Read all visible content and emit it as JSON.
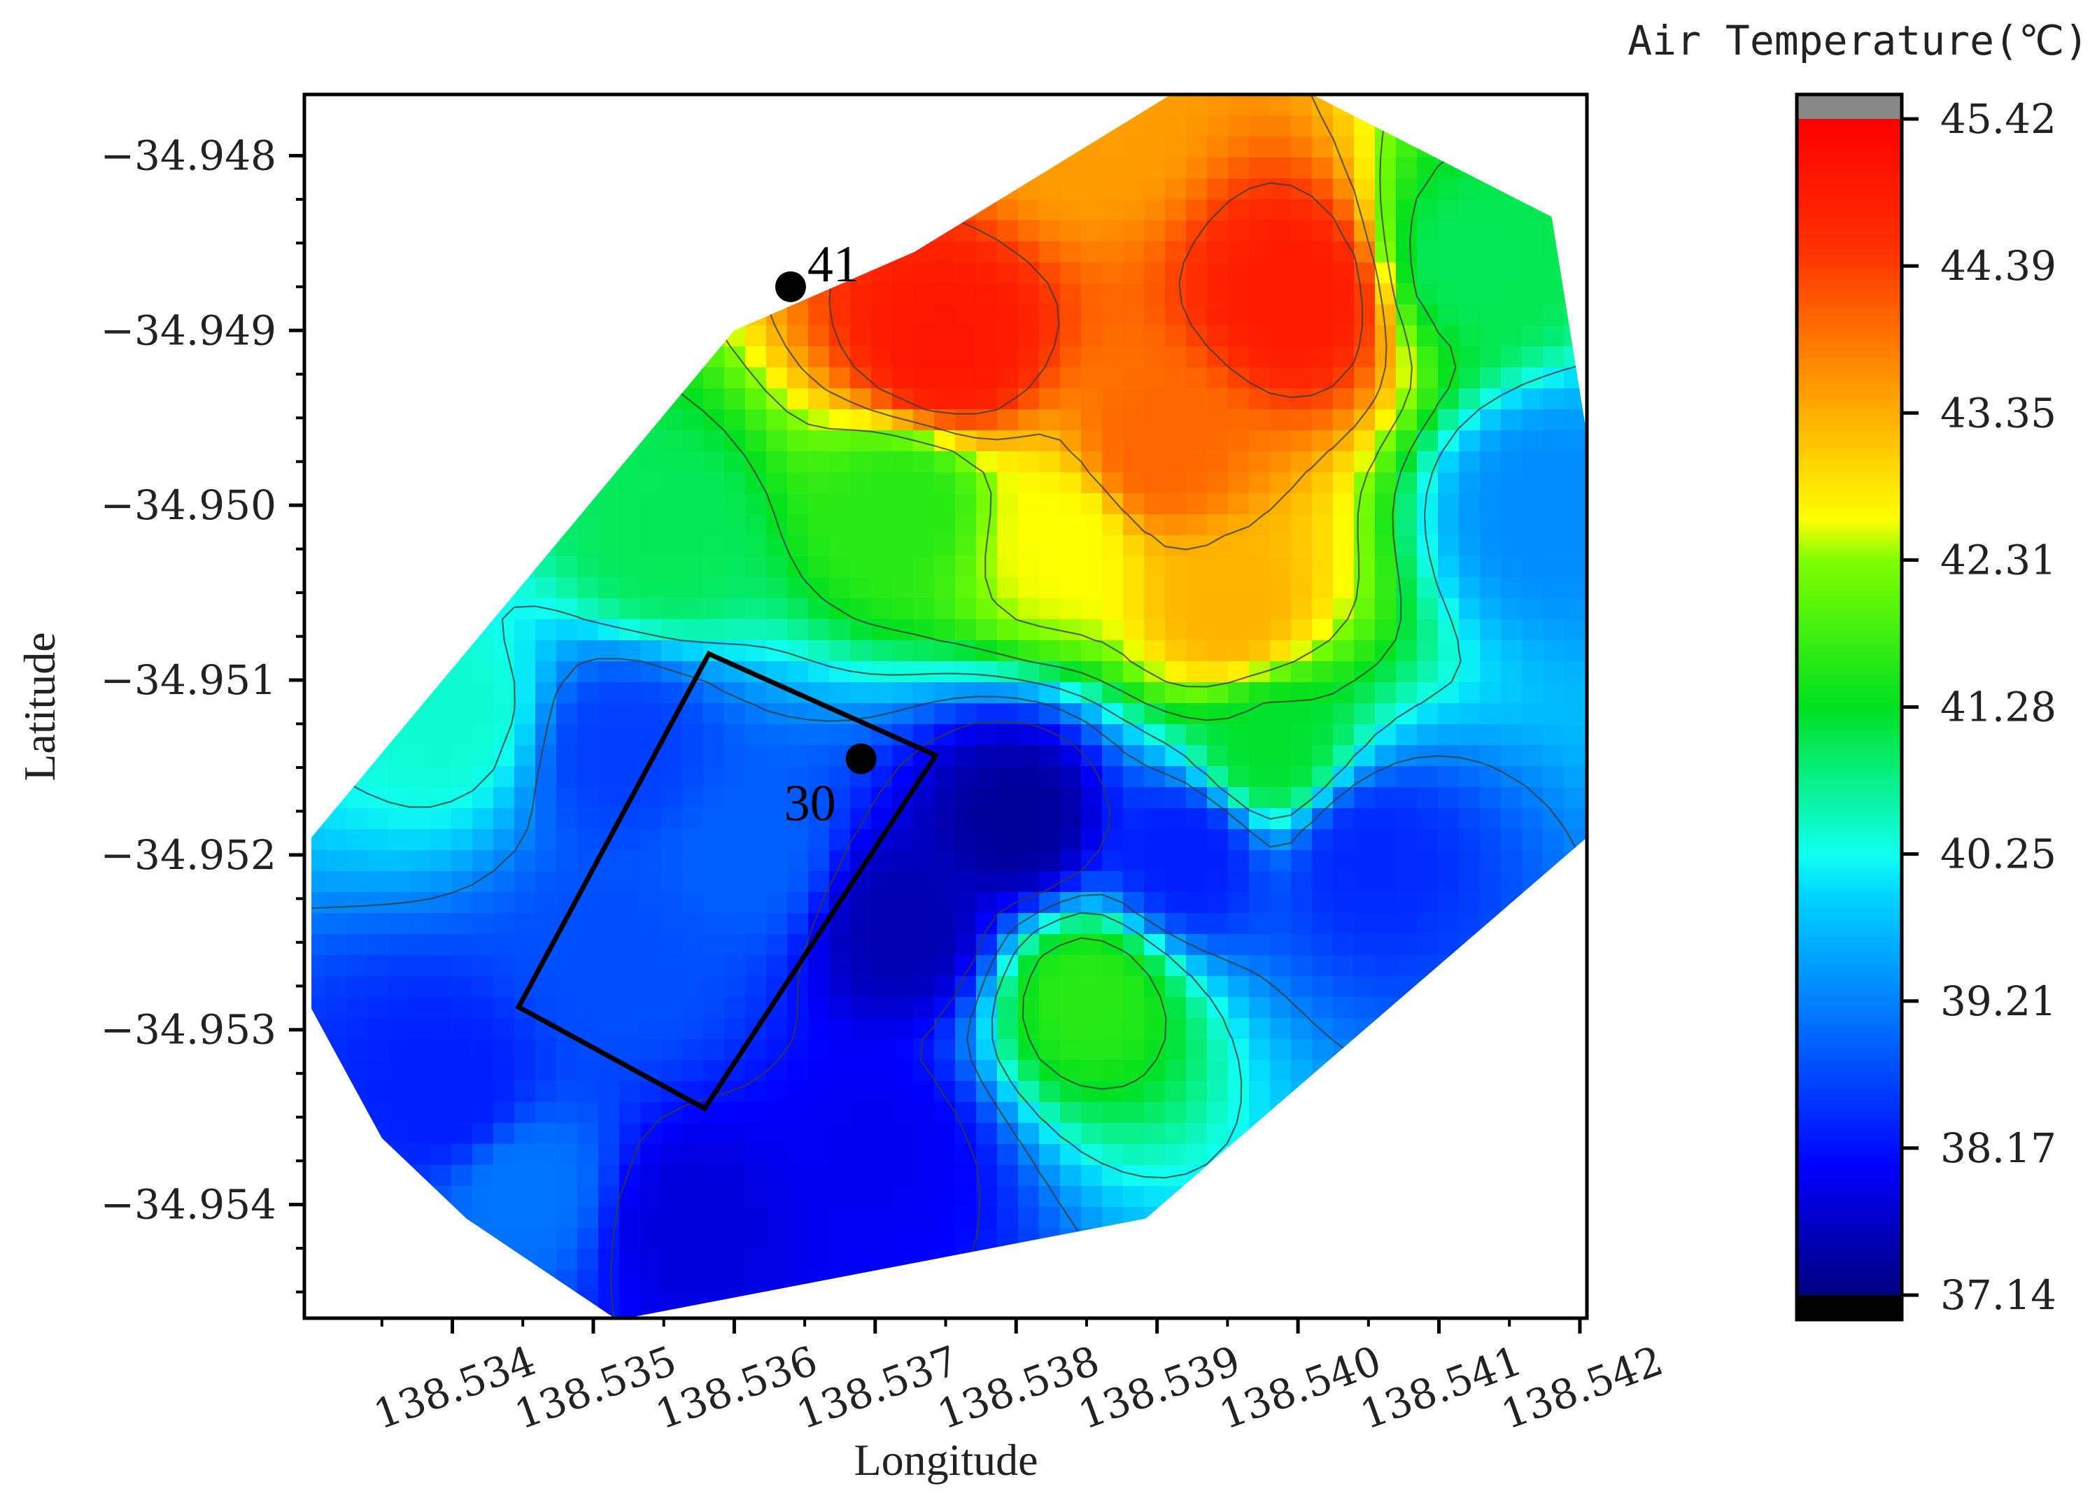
{
  "chart_data": {
    "type": "heatmap",
    "title": "",
    "xlabel": "Longitude",
    "ylabel": "Latitude",
    "xlim": [
      138.53295,
      138.54205
    ],
    "ylim": [
      -34.95465,
      -34.94765
    ],
    "x_ticks": [
      "138.534",
      "138.535",
      "138.536",
      "138.537",
      "138.538",
      "138.539",
      "138.540",
      "138.541",
      "138.542"
    ],
    "y_ticks": [
      "-34.948",
      "-34.949",
      "-34.950",
      "-34.951",
      "-34.952",
      "-34.953",
      "-34.954"
    ],
    "colorbar": {
      "title": "Air Temperature(℃)",
      "min": 37.14,
      "max": 45.42,
      "ticks": [
        "45.42",
        "44.39",
        "43.35",
        "42.31",
        "41.28",
        "40.25",
        "39.21",
        "38.17",
        "37.14"
      ],
      "colormap": "jet",
      "over_color": "#888888",
      "under_color": "#000000"
    },
    "stations": [
      {
        "id": "41",
        "lon": 138.5364,
        "lat": -34.94875
      },
      {
        "id": "30",
        "lon": 138.5369,
        "lat": -34.95145
      }
    ],
    "site_rectangle": [
      {
        "lon": 138.53582,
        "lat": -34.95085
      },
      {
        "lon": 138.53743,
        "lat": -34.95143
      },
      {
        "lon": 138.53579,
        "lat": -34.95345
      },
      {
        "lon": 138.53447,
        "lat": -34.95287
      }
    ],
    "hull": [
      {
        "lon": 138.533,
        "lat": -34.95288
      },
      {
        "lon": 138.5335,
        "lat": -34.95362
      },
      {
        "lon": 138.5341,
        "lat": -34.95408
      },
      {
        "lon": 138.53517,
        "lat": -34.95466
      },
      {
        "lon": 138.53892,
        "lat": -34.95408
      },
      {
        "lon": 138.54205,
        "lat": -34.9519
      },
      {
        "lon": 138.54205,
        "lat": -34.9496
      },
      {
        "lon": 138.5418,
        "lat": -34.94835
      },
      {
        "lon": 138.5401,
        "lat": -34.94765
      },
      {
        "lon": 138.5391,
        "lat": -34.94765
      },
      {
        "lon": 138.53728,
        "lat": -34.94855
      },
      {
        "lon": 138.536,
        "lat": -34.949
      },
      {
        "lon": 138.533,
        "lat": -34.9519
      }
    ],
    "field_points": [
      {
        "lon": 138.5375,
        "lat": -34.9491,
        "t": 45.0
      },
      {
        "lon": 138.54,
        "lat": -34.9488,
        "t": 44.9
      },
      {
        "lon": 138.539,
        "lat": -34.9497,
        "t": 44.0
      },
      {
        "lon": 138.5385,
        "lat": -34.9478,
        "t": 43.5
      },
      {
        "lon": 138.5395,
        "lat": -34.9506,
        "t": 43.3
      },
      {
        "lon": 138.5383,
        "lat": -34.9502,
        "t": 42.6
      },
      {
        "lon": 138.5372,
        "lat": -34.95,
        "t": 41.6
      },
      {
        "lon": 138.5355,
        "lat": -34.9502,
        "t": 41.0
      },
      {
        "lon": 138.534,
        "lat": -34.9512,
        "t": 40.4
      },
      {
        "lon": 138.5412,
        "lat": -34.9486,
        "t": 41.0
      },
      {
        "lon": 138.5418,
        "lat": -34.95,
        "t": 39.3
      },
      {
        "lon": 138.5398,
        "lat": -34.9514,
        "t": 41.2
      },
      {
        "lon": 138.5385,
        "lat": -34.9528,
        "t": 41.6
      },
      {
        "lon": 138.538,
        "lat": -34.9518,
        "t": 37.35
      },
      {
        "lon": 138.5372,
        "lat": -34.9524,
        "t": 37.5
      },
      {
        "lon": 138.5361,
        "lat": -34.952,
        "t": 38.9
      },
      {
        "lon": 138.5352,
        "lat": -34.9514,
        "t": 38.6
      },
      {
        "lon": 138.5352,
        "lat": -34.9526,
        "t": 38.75
      },
      {
        "lon": 138.534,
        "lat": -34.9534,
        "t": 38.3
      },
      {
        "lon": 138.5345,
        "lat": -34.9539,
        "t": 39.1
      },
      {
        "lon": 138.5357,
        "lat": -34.9541,
        "t": 37.8
      },
      {
        "lon": 138.537,
        "lat": -34.9537,
        "t": 37.95
      },
      {
        "lon": 138.5392,
        "lat": -34.952,
        "t": 38.3
      },
      {
        "lon": 138.5405,
        "lat": -34.952,
        "t": 38.4
      }
    ]
  }
}
